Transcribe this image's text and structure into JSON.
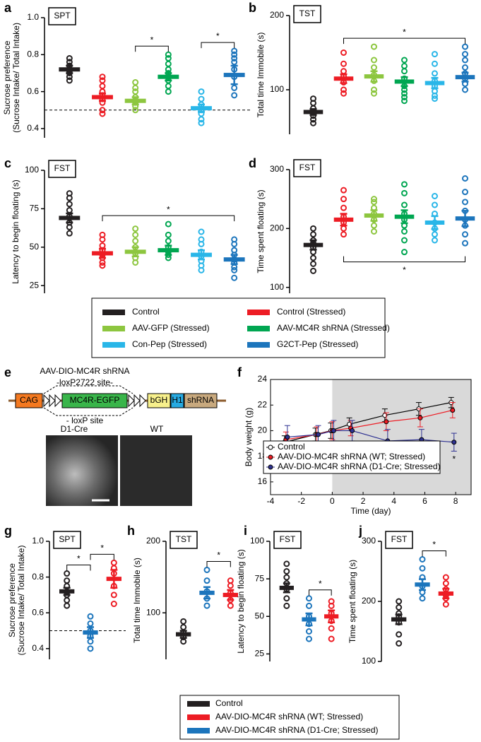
{
  "chart_data": [
    {
      "type": "dotplot",
      "panel": "a",
      "label": "SPT",
      "ylabel": [
        "Sucrose preference",
        "(Sucrose Intake/ Total Intake)"
      ],
      "ylim": [
        0.35,
        1.0
      ],
      "yticks": [
        0.4,
        0.6,
        0.8,
        {
          "value": 1.0,
          "label": "1.0"
        }
      ],
      "reference_line": 0.5,
      "groups": [
        {
          "color": "#231f20",
          "mean": 0.72,
          "error": 0.02,
          "points": [
            0.78,
            0.76,
            0.74,
            0.72,
            0.71,
            0.7,
            0.68,
            0.66
          ]
        },
        {
          "color": "#ed1c24",
          "mean": 0.57,
          "error": 0.02,
          "points": [
            0.68,
            0.66,
            0.63,
            0.6,
            0.58,
            0.56,
            0.54,
            0.5,
            0.48
          ]
        },
        {
          "color": "#8dc63f",
          "mean": 0.55,
          "error": 0.02,
          "points": [
            0.65,
            0.62,
            0.6,
            0.57,
            0.55,
            0.54,
            0.52,
            0.5
          ]
        },
        {
          "color": "#00a651",
          "mean": 0.68,
          "error": 0.02,
          "points": [
            0.8,
            0.78,
            0.75,
            0.72,
            0.7,
            0.68,
            0.66,
            0.63,
            0.6
          ]
        },
        {
          "color": "#29b6e8",
          "mean": 0.51,
          "error": 0.02,
          "points": [
            0.6,
            0.56,
            0.53,
            0.5,
            0.48,
            0.45,
            0.43
          ]
        },
        {
          "color": "#1c75bc",
          "mean": 0.69,
          "error": 0.05,
          "points": [
            0.82,
            0.8,
            0.78,
            0.76,
            0.72,
            0.68,
            0.62,
            0.58
          ]
        }
      ],
      "significance": [
        {
          "from": 2,
          "to": 3,
          "label": "*",
          "side": "above"
        },
        {
          "from": 4,
          "to": 5,
          "label": "*",
          "side": "above"
        }
      ]
    },
    {
      "type": "dotplot",
      "panel": "b",
      "label": "TST",
      "ylabel": [
        "Total time Immobile (s)"
      ],
      "ylim": [
        40,
        200
      ],
      "yticks": [
        100,
        200
      ],
      "groups": [
        {
          "color": "#231f20",
          "mean": 70,
          "error": 4,
          "points": [
            88,
            82,
            75,
            70,
            65,
            60,
            55
          ]
        },
        {
          "color": "#ed1c24",
          "mean": 115,
          "error": 6,
          "points": [
            150,
            135,
            125,
            118,
            110,
            100,
            95
          ]
        },
        {
          "color": "#8dc63f",
          "mean": 118,
          "error": 7,
          "points": [
            158,
            140,
            130,
            120,
            112,
            100,
            95
          ]
        },
        {
          "color": "#00a651",
          "mean": 111,
          "error": 6,
          "points": [
            140,
            132,
            125,
            115,
            105,
            100,
            95,
            90,
            85
          ]
        },
        {
          "color": "#29b6e8",
          "mean": 109,
          "error": 7,
          "points": [
            148,
            135,
            122,
            112,
            105,
            98,
            92,
            88
          ]
        },
        {
          "color": "#1c75bc",
          "mean": 117,
          "error": 6,
          "points": [
            158,
            148,
            140,
            130,
            122,
            115,
            108,
            100
          ]
        }
      ],
      "significance": [
        {
          "from": 1,
          "to": 5,
          "label": "*",
          "side": "above"
        }
      ]
    },
    {
      "type": "dotplot",
      "panel": "c",
      "label": "FST",
      "ylabel": [
        "Latency to begin floating (s)"
      ],
      "ylim": [
        20,
        100
      ],
      "yticks": [
        25,
        50,
        75,
        100
      ],
      "groups": [
        {
          "color": "#231f20",
          "mean": 69,
          "error": 3,
          "points": [
            85,
            82,
            78,
            74,
            70,
            66,
            63,
            59
          ]
        },
        {
          "color": "#ed1c24",
          "mean": 46,
          "error": 3,
          "points": [
            58,
            55,
            51,
            48,
            45,
            43,
            40,
            38
          ]
        },
        {
          "color": "#8dc63f",
          "mean": 47,
          "error": 3,
          "points": [
            62,
            58,
            54,
            50,
            46,
            43,
            40
          ]
        },
        {
          "color": "#00a651",
          "mean": 48,
          "error": 3,
          "points": [
            65,
            58,
            54,
            50,
            47,
            45,
            43
          ]
        },
        {
          "color": "#29b6e8",
          "mean": 45,
          "error": 3,
          "points": [
            60,
            55,
            52,
            47,
            44,
            41,
            38,
            35
          ]
        },
        {
          "color": "#1c75bc",
          "mean": 42,
          "error": 3,
          "points": [
            55,
            52,
            48,
            45,
            42,
            40,
            37,
            35,
            30
          ]
        }
      ],
      "significance": [
        {
          "from": 1,
          "to": 5,
          "label": "*",
          "side": "above"
        }
      ]
    },
    {
      "type": "dotplot",
      "panel": "d",
      "label": "FST",
      "ylabel": [
        "Time spent floating (s)"
      ],
      "ylim": [
        90,
        300
      ],
      "yticks": [
        100,
        200,
        300
      ],
      "groups": [
        {
          "color": "#231f20",
          "mean": 172,
          "error": 8,
          "points": [
            200,
            190,
            180,
            175,
            168,
            160,
            150,
            140,
            128
          ]
        },
        {
          "color": "#ed1c24",
          "mean": 215,
          "error": 10,
          "points": [
            265,
            250,
            235,
            220,
            210,
            200,
            190
          ]
        },
        {
          "color": "#8dc63f",
          "mean": 222,
          "error": 9,
          "points": [
            250,
            245,
            235,
            225,
            215,
            205,
            195
          ]
        },
        {
          "color": "#00a651",
          "mean": 220,
          "error": 11,
          "points": [
            275,
            260,
            240,
            225,
            215,
            205,
            195,
            180,
            160
          ]
        },
        {
          "color": "#29b6e8",
          "mean": 210,
          "error": 11,
          "points": [
            255,
            240,
            225,
            210,
            200,
            190,
            180
          ]
        },
        {
          "color": "#1c75bc",
          "mean": 217,
          "error": 13,
          "points": [
            285,
            262,
            245,
            230,
            215,
            205,
            190,
            175
          ]
        }
      ],
      "significance": [
        {
          "from": 1,
          "to": 5,
          "label": "*",
          "side": "below"
        }
      ]
    },
    {
      "type": "line",
      "panel": "f",
      "xlabel": "Time (day)",
      "ylabel": "Body weight (g)",
      "xlim": [
        -4,
        9
      ],
      "ylim": [
        15,
        24
      ],
      "xticks": [
        -4,
        -2,
        0,
        2,
        4,
        6,
        8
      ],
      "yticks": [
        16,
        18,
        20,
        22,
        24
      ],
      "shaded_region": [
        0,
        9
      ],
      "annotation": "*",
      "x": [
        -3,
        -1,
        0,
        1.2,
        3.5,
        5.7,
        7.8
      ],
      "series": [
        {
          "name": "Control",
          "color": "#000000",
          "marker": "open",
          "values": [
            19.1,
            19.7,
            20.0,
            20.5,
            21.2,
            21.7,
            22.2
          ],
          "errors": [
            0.5,
            0.5,
            0.6,
            0.5,
            0.5,
            0.5,
            0.4
          ]
        },
        {
          "name": "AAV-DIO-MC4R shRNA (WT; Stressed)",
          "color": "#ed1c24",
          "marker": "filled",
          "values": [
            19.3,
            19.7,
            20.0,
            20.2,
            20.7,
            21.0,
            21.6
          ],
          "errors": [
            0.6,
            0.6,
            0.7,
            0.6,
            0.7,
            0.7,
            0.6
          ]
        },
        {
          "name": "AAV-DIO-MC4R shRNA (D1-Cre; Stressed)",
          "color": "#2e3192",
          "marker": "filled",
          "values": [
            19.5,
            19.7,
            20.0,
            20.0,
            19.2,
            19.3,
            19.1
          ],
          "errors": [
            0.9,
            0.7,
            0.8,
            0.8,
            0.9,
            0.8,
            0.7
          ]
        }
      ]
    },
    {
      "type": "dotplot",
      "panel": "g",
      "label": "SPT",
      "ylabel": [
        "Sucrose preference",
        "(Sucrose Intake/ Total Intake)"
      ],
      "ylim": [
        0.34,
        1.0
      ],
      "yticks": [
        0.4,
        0.6,
        0.8,
        {
          "value": 1.0,
          "label": "1.0"
        }
      ],
      "reference_line": 0.5,
      "groups": [
        {
          "color": "#231f20",
          "mean": 0.72,
          "error": 0.02,
          "points": [
            0.82,
            0.78,
            0.75,
            0.72,
            0.7,
            0.67,
            0.64
          ]
        },
        {
          "color": "#1c75bc",
          "mean": 0.49,
          "error": 0.03,
          "points": [
            0.58,
            0.54,
            0.5,
            0.47,
            0.44,
            0.4
          ]
        },
        {
          "color": "#ed1c24",
          "mean": 0.79,
          "error": 0.05,
          "points": [
            0.88,
            0.85,
            0.82,
            0.75,
            0.7,
            0.65
          ]
        }
      ],
      "significance": [
        {
          "from": 0,
          "to": 1,
          "label": "*",
          "side": "above"
        },
        {
          "from": 1,
          "to": 2,
          "label": "*",
          "side": "above"
        }
      ]
    },
    {
      "type": "dotplot",
      "panel": "h",
      "label": "TST",
      "ylabel": [
        "Total time Immobile (s)"
      ],
      "ylim": [
        35,
        200
      ],
      "yticks": [
        100,
        200
      ],
      "groups": [
        {
          "color": "#231f20",
          "mean": 70,
          "error": 5,
          "points": [
            88,
            80,
            72,
            66,
            60
          ]
        },
        {
          "color": "#1c75bc",
          "mean": 128,
          "error": 8,
          "points": [
            160,
            145,
            130,
            120,
            110
          ]
        },
        {
          "color": "#ed1c24",
          "mean": 125,
          "error": 7,
          "points": [
            145,
            138,
            128,
            118,
            110
          ]
        }
      ],
      "significance": [
        {
          "from": 1,
          "to": 2,
          "label": "*",
          "side": "above"
        }
      ]
    },
    {
      "type": "dotplot",
      "panel": "i",
      "label": "FST",
      "ylabel": [
        "Latency to begin floating (s)"
      ],
      "ylim": [
        20,
        100
      ],
      "yticks": [
        25,
        50,
        75,
        100
      ],
      "groups": [
        {
          "color": "#231f20",
          "mean": 69,
          "error": 3,
          "points": [
            85,
            80,
            76,
            72,
            68,
            62,
            57
          ]
        },
        {
          "color": "#1c75bc",
          "mean": 48,
          "error": 4,
          "points": [
            62,
            57,
            50,
            45,
            40,
            35
          ]
        },
        {
          "color": "#ed1c24",
          "mean": 50,
          "error": 4,
          "points": [
            60,
            57,
            52,
            47,
            42,
            35
          ]
        }
      ],
      "significance": [
        {
          "from": 1,
          "to": 2,
          "label": "*",
          "side": "above"
        }
      ]
    },
    {
      "type": "dotplot",
      "panel": "j",
      "label": "FST",
      "ylabel": [
        "Time spent floating (s)"
      ],
      "ylim": [
        100,
        300
      ],
      "yticks": [
        100,
        200,
        300
      ],
      "groups": [
        {
          "color": "#231f20",
          "mean": 170,
          "error": 8,
          "points": [
            200,
            190,
            180,
            175,
            165,
            145,
            130
          ]
        },
        {
          "color": "#1c75bc",
          "mean": 228,
          "error": 9,
          "points": [
            270,
            255,
            240,
            225,
            215,
            205
          ]
        },
        {
          "color": "#ed1c24",
          "mean": 213,
          "error": 8,
          "points": [
            240,
            230,
            220,
            210,
            205,
            195
          ]
        }
      ],
      "significance": [
        {
          "from": 1,
          "to": 2,
          "label": "*",
          "side": "above"
        }
      ]
    }
  ],
  "legend_top": [
    {
      "name": "Control",
      "color": "#231f20"
    },
    {
      "name": "Control (Stressed)",
      "color": "#ed1c24"
    },
    {
      "name": "AAV-GFP (Stressed)",
      "color": "#8dc63f"
    },
    {
      "name": "AAV-MC4R shRNA (Stressed)",
      "color": "#00a651"
    },
    {
      "name": "Con-Pep (Stressed)",
      "color": "#29b6e8"
    },
    {
      "name": "G2CT-Pep (Stressed)",
      "color": "#1c75bc"
    }
  ],
  "legend_bottom": [
    {
      "name": "Control",
      "color": "#231f20"
    },
    {
      "name": "AAV-DIO-MC4R shRNA (WT; Stressed)",
      "color": "#ed1c24"
    },
    {
      "name": "AAV-DIO-MC4R shRNA (D1-Cre; Stressed)",
      "color": "#1c75bc"
    }
  ],
  "schematic": {
    "panel": "e",
    "title": "AAV-DIO-MC4R shRNA",
    "site_top": "-loxP2722 site-",
    "site_bottom": "- loxP site",
    "elements": [
      "CAG",
      "MC4R-EGFP",
      "bGH",
      "H1",
      "shRNA"
    ],
    "images": [
      "D1-Cre",
      "WT"
    ]
  }
}
